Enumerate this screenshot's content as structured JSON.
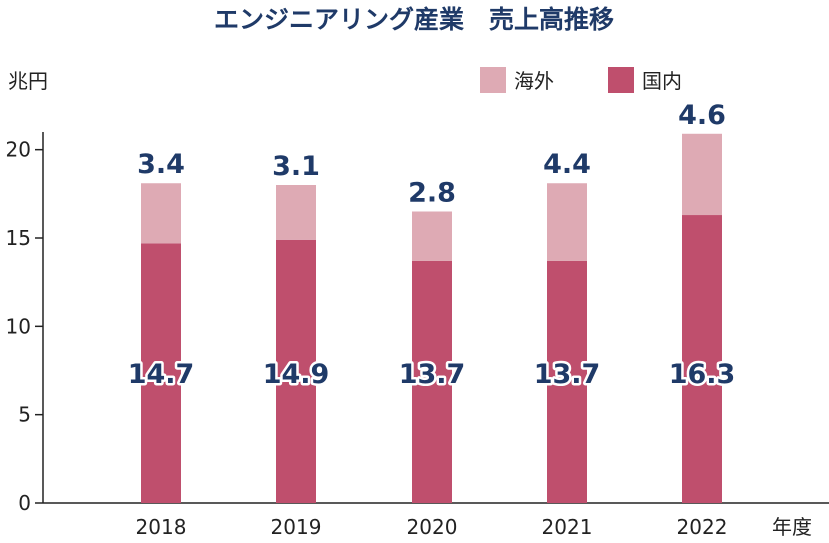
{
  "chart_data": {
    "type": "bar",
    "stacked": true,
    "title": "エンジニアリング産業　売上高推移",
    "ylabel": "兆円",
    "xlabel": "年度",
    "categories": [
      "2018",
      "2019",
      "2020",
      "2021",
      "2022"
    ],
    "ylim": [
      0,
      21
    ],
    "yticks": [
      0,
      5,
      10,
      15,
      20
    ],
    "legend_position": "top-right",
    "series": [
      {
        "name": "国内",
        "values": [
          14.7,
          14.9,
          13.7,
          13.7,
          16.3
        ],
        "labels": [
          "14.7",
          "14.9",
          "13.7",
          "13.7",
          "16.3"
        ],
        "color": "#bf4f6d"
      },
      {
        "name": "海外",
        "values": [
          3.4,
          3.1,
          2.8,
          4.4,
          4.6
        ],
        "labels": [
          "3.4",
          "3.1",
          "2.8",
          "4.4",
          "4.6"
        ],
        "color": "#deaab4"
      }
    ]
  }
}
